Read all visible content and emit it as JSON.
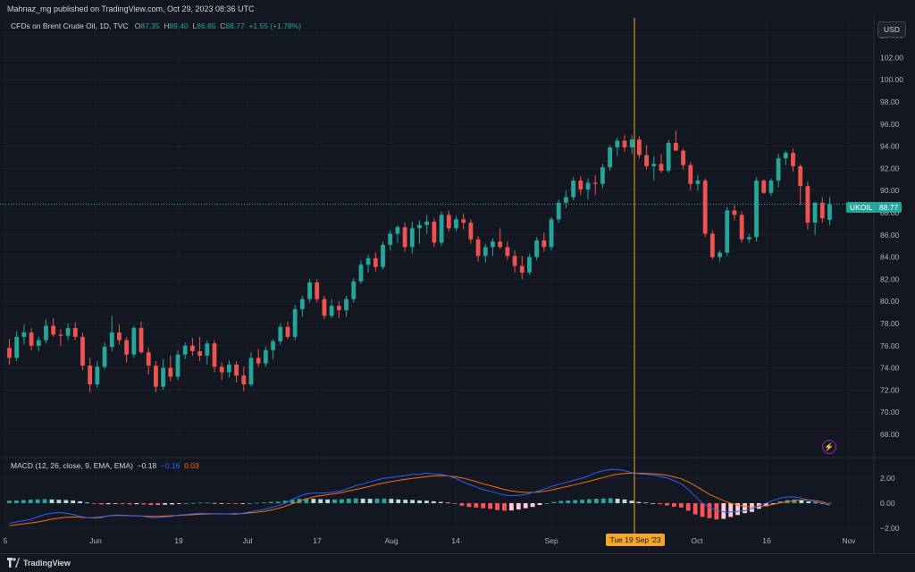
{
  "header": {
    "published": "Mahnaz_mg published on TradingView.com, Oct 29, 2023 08:36 UTC"
  },
  "legend": {
    "symbol": "CFDs on Brent Crude Oil, 1D, TVC",
    "o_label": "O",
    "o_value": "87.35",
    "h_label": "H",
    "h_value": "89.40",
    "l_label": "L",
    "l_value": "86.85",
    "c_label": "C",
    "c_value": "88.77",
    "change": "+1.55 (+1.78%)"
  },
  "currency_button": "USD",
  "price_label": {
    "symbol": "UKOIL",
    "value": "88.77"
  },
  "crosshair_date": "Tue 19 Sep '23",
  "macd_legend": {
    "name": "MACD (12, 26, close, 9, EMA, EMA)",
    "macd_value": "−0.18",
    "signal_value": "−0.16",
    "hist_value": "0.03"
  },
  "footer": {
    "brand": "TradingView"
  },
  "colors": {
    "up": "#26a69a",
    "down": "#ef5350",
    "macd_line": "#2962ff",
    "signal_line": "#ff6d00",
    "crosshair": "#f5a623",
    "bg": "#131722"
  },
  "chart_data": [
    {
      "type": "candlestick",
      "title": "CFDs on Brent Crude Oil, 1D, TVC",
      "y_ticks": [
        "104.00",
        "102.00",
        "100.00",
        "98.00",
        "96.00",
        "94.00",
        "92.00",
        "90.00",
        "88.00",
        "86.00",
        "84.00",
        "82.00",
        "80.00",
        "78.00",
        "76.00",
        "74.00",
        "72.00",
        "70.00",
        "68.00"
      ],
      "x_ticks": [
        "5",
        "Jun",
        "19",
        "Jul",
        "17",
        "Aug",
        "14",
        "Sep",
        "Oct",
        "16",
        "Nov"
      ],
      "ylim": [
        66.5,
        105
      ],
      "ohlc": [
        [
          75.8,
          76.6,
          74.3,
          74.9
        ],
        [
          74.9,
          77.3,
          74.6,
          76.8
        ],
        [
          76.8,
          77.9,
          76.1,
          77.2
        ],
        [
          77.2,
          77.6,
          75.6,
          76.0
        ],
        [
          76.0,
          76.8,
          75.5,
          76.5
        ],
        [
          76.5,
          78.4,
          76.2,
          77.8
        ],
        [
          77.8,
          78.5,
          76.8,
          77.0
        ],
        [
          77.0,
          77.5,
          76.0,
          76.9
        ],
        [
          76.9,
          78.0,
          76.5,
          77.6
        ],
        [
          77.6,
          78.1,
          76.5,
          76.8
        ],
        [
          76.8,
          77.2,
          73.8,
          74.2
        ],
        [
          74.2,
          74.9,
          71.8,
          72.5
        ],
        [
          72.5,
          74.6,
          72.2,
          74.1
        ],
        [
          74.1,
          76.3,
          73.9,
          75.9
        ],
        [
          75.9,
          78.7,
          75.5,
          77.2
        ],
        [
          77.2,
          77.9,
          76.1,
          76.5
        ],
        [
          76.5,
          76.8,
          74.5,
          75.2
        ],
        [
          75.2,
          77.8,
          74.9,
          77.6
        ],
        [
          77.6,
          78.2,
          75.3,
          75.4
        ],
        [
          75.4,
          75.8,
          73.4,
          74.2
        ],
        [
          74.2,
          74.6,
          71.8,
          72.3
        ],
        [
          72.3,
          74.8,
          72.0,
          74.0
        ],
        [
          74.0,
          75.1,
          72.8,
          73.2
        ],
        [
          73.2,
          75.6,
          72.9,
          75.2
        ],
        [
          75.2,
          76.3,
          74.8,
          76.0
        ],
        [
          76.0,
          76.7,
          75.1,
          75.5
        ],
        [
          75.5,
          76.8,
          74.6,
          75.1
        ],
        [
          75.1,
          76.5,
          74.3,
          76.2
        ],
        [
          76.2,
          76.5,
          73.6,
          74.1
        ],
        [
          74.1,
          74.5,
          72.9,
          73.6
        ],
        [
          73.6,
          74.7,
          73.1,
          74.3
        ],
        [
          74.3,
          74.6,
          72.7,
          73.3
        ],
        [
          73.3,
          74.1,
          71.9,
          72.5
        ],
        [
          72.5,
          75.4,
          72.3,
          74.9
        ],
        [
          74.9,
          75.7,
          74.1,
          74.4
        ],
        [
          74.4,
          75.9,
          74.1,
          75.6
        ],
        [
          75.6,
          76.6,
          74.8,
          76.4
        ],
        [
          76.4,
          78.0,
          76.1,
          77.7
        ],
        [
          77.7,
          78.2,
          76.6,
          76.8
        ],
        [
          76.8,
          79.7,
          76.5,
          79.3
        ],
        [
          79.3,
          80.5,
          78.6,
          80.2
        ],
        [
          80.2,
          82.0,
          79.9,
          81.7
        ],
        [
          81.7,
          82.0,
          79.9,
          80.2
        ],
        [
          80.2,
          80.5,
          78.4,
          78.7
        ],
        [
          78.7,
          80.2,
          78.5,
          79.6
        ],
        [
          79.6,
          80.0,
          78.5,
          79.2
        ],
        [
          79.2,
          80.5,
          78.6,
          80.2
        ],
        [
          80.2,
          82.1,
          79.9,
          81.8
        ],
        [
          81.8,
          83.7,
          81.6,
          83.3
        ],
        [
          83.3,
          84.2,
          82.6,
          83.9
        ],
        [
          83.9,
          84.4,
          82.7,
          83.1
        ],
        [
          83.1,
          85.4,
          82.9,
          85.1
        ],
        [
          85.1,
          86.4,
          84.6,
          86.1
        ],
        [
          86.1,
          86.9,
          85.3,
          86.7
        ],
        [
          86.7,
          87.1,
          84.5,
          84.9
        ],
        [
          84.9,
          87.2,
          84.3,
          86.6
        ],
        [
          86.6,
          87.3,
          85.2,
          86.9
        ],
        [
          86.9,
          87.8,
          86.1,
          87.2
        ],
        [
          87.2,
          87.5,
          84.9,
          85.3
        ],
        [
          85.3,
          88.1,
          85.0,
          87.8
        ],
        [
          87.8,
          88.2,
          86.3,
          86.6
        ],
        [
          86.6,
          87.7,
          86.3,
          87.4
        ],
        [
          87.4,
          87.9,
          86.5,
          87.1
        ],
        [
          87.1,
          87.4,
          85.2,
          85.6
        ],
        [
          85.6,
          85.9,
          83.6,
          84.1
        ],
        [
          84.1,
          85.2,
          83.5,
          84.9
        ],
        [
          84.9,
          85.7,
          84.1,
          85.4
        ],
        [
          85.4,
          86.6,
          84.7,
          84.9
        ],
        [
          84.9,
          85.4,
          83.7,
          84.1
        ],
        [
          84.1,
          84.6,
          82.6,
          83.2
        ],
        [
          83.2,
          84.1,
          82.0,
          82.6
        ],
        [
          82.6,
          84.3,
          82.4,
          84.0
        ],
        [
          84.0,
          85.8,
          83.7,
          85.5
        ],
        [
          85.5,
          86.2,
          84.5,
          84.9
        ],
        [
          84.9,
          87.6,
          84.6,
          87.4
        ],
        [
          87.4,
          89.2,
          87.1,
          88.9
        ],
        [
          88.9,
          90.0,
          88.4,
          89.4
        ],
        [
          89.4,
          91.2,
          89.1,
          90.9
        ],
        [
          90.9,
          91.3,
          89.6,
          90.1
        ],
        [
          90.1,
          91.1,
          89.2,
          90.7
        ],
        [
          90.7,
          91.4,
          89.6,
          90.6
        ],
        [
          90.6,
          92.4,
          90.2,
          92.1
        ],
        [
          92.1,
          94.1,
          91.8,
          93.9
        ],
        [
          93.9,
          94.8,
          93.1,
          94.5
        ],
        [
          94.5,
          95.0,
          93.5,
          93.9
        ],
        [
          93.9,
          95.0,
          93.3,
          94.6
        ],
        [
          94.6,
          94.9,
          92.9,
          93.2
        ],
        [
          93.2,
          94.1,
          91.9,
          92.2
        ],
        [
          92.2,
          93.1,
          90.9,
          92.4
        ],
        [
          92.4,
          93.3,
          91.6,
          91.8
        ],
        [
          91.8,
          94.6,
          91.6,
          94.3
        ],
        [
          94.3,
          95.4,
          93.6,
          93.6
        ],
        [
          93.6,
          93.8,
          91.9,
          92.3
        ],
        [
          92.3,
          92.6,
          90.0,
          90.6
        ],
        [
          90.6,
          91.4,
          90.0,
          90.9
        ],
        [
          90.9,
          91.1,
          85.8,
          86.1
        ],
        [
          86.1,
          86.4,
          83.8,
          84.0
        ],
        [
          84.0,
          84.6,
          83.6,
          84.4
        ],
        [
          84.4,
          88.5,
          84.1,
          88.2
        ],
        [
          88.2,
          88.7,
          87.3,
          87.8
        ],
        [
          87.8,
          88.1,
          85.3,
          85.6
        ],
        [
          85.6,
          86.1,
          85.3,
          85.8
        ],
        [
          85.8,
          91.2,
          85.4,
          90.9
        ],
        [
          90.9,
          91.0,
          89.7,
          89.8
        ],
        [
          89.8,
          91.1,
          89.5,
          90.9
        ],
        [
          90.9,
          93.3,
          90.3,
          92.9
        ],
        [
          92.9,
          93.6,
          92.3,
          93.4
        ],
        [
          93.4,
          93.8,
          91.7,
          92.2
        ],
        [
          92.2,
          92.4,
          88.7,
          90.4
        ],
        [
          90.4,
          90.8,
          86.5,
          87.1
        ],
        [
          87.1,
          89.0,
          86.0,
          88.9
        ],
        [
          88.9,
          89.4,
          87.1,
          87.5
        ],
        [
          87.35,
          89.4,
          86.85,
          88.77
        ]
      ]
    },
    {
      "type": "bar+line",
      "title": "MACD (12, 26, close, 9, EMA, EMA)",
      "y_ticks": [
        "2.00",
        "0.00",
        "−2.00"
      ],
      "ylim": [
        -3,
        3
      ],
      "series": [
        {
          "name": "Histogram",
          "values": [
            0.2,
            0.22,
            0.25,
            0.28,
            0.3,
            0.32,
            0.3,
            0.27,
            0.25,
            0.22,
            0.15,
            0.05,
            -0.05,
            -0.1,
            -0.08,
            -0.05,
            -0.08,
            -0.1,
            -0.08,
            -0.1,
            -0.15,
            -0.15,
            -0.12,
            -0.1,
            -0.05,
            0.0,
            0.02,
            0.05,
            0.05,
            0.02,
            0.0,
            -0.02,
            -0.06,
            -0.03,
            0.0,
            0.03,
            0.06,
            0.1,
            0.12,
            0.2,
            0.28,
            0.35,
            0.38,
            0.35,
            0.32,
            0.3,
            0.3,
            0.32,
            0.36,
            0.38,
            0.36,
            0.35,
            0.36,
            0.37,
            0.35,
            0.3,
            0.28,
            0.26,
            0.22,
            0.2,
            0.15,
            0.1,
            0.05,
            -0.05,
            -0.2,
            -0.3,
            -0.35,
            -0.4,
            -0.45,
            -0.55,
            -0.6,
            -0.58,
            -0.5,
            -0.4,
            -0.3,
            -0.15,
            0.0,
            0.1,
            0.18,
            0.22,
            0.25,
            0.28,
            0.32,
            0.36,
            0.38,
            0.4,
            0.36,
            0.3,
            0.2,
            0.1,
            0.05,
            0.0,
            -0.08,
            -0.18,
            -0.28,
            -0.35,
            -0.6,
            -0.9,
            -1.1,
            -1.2,
            -1.3,
            -1.25,
            -1.1,
            -0.95,
            -0.8,
            -0.7,
            -0.45,
            -0.25,
            -0.05,
            0.15,
            0.25,
            0.3,
            0.25,
            0.15,
            0.05,
            0.0,
            0.03
          ]
        },
        {
          "name": "MACD",
          "values": [
            -1.6,
            -1.5,
            -1.4,
            -1.3,
            -1.1,
            -0.9,
            -0.8,
            -0.75,
            -0.8,
            -0.9,
            -1.05,
            -1.15,
            -1.2,
            -1.15,
            -1.0,
            -0.95,
            -0.95,
            -0.98,
            -1.0,
            -1.05,
            -1.15,
            -1.15,
            -1.1,
            -1.05,
            -0.95,
            -0.9,
            -0.85,
            -0.8,
            -0.82,
            -0.85,
            -0.85,
            -0.86,
            -0.9,
            -0.8,
            -0.7,
            -0.6,
            -0.5,
            -0.35,
            -0.2,
            0.0,
            0.3,
            0.55,
            0.75,
            0.8,
            0.8,
            0.82,
            0.9,
            1.0,
            1.2,
            1.4,
            1.55,
            1.7,
            1.85,
            2.0,
            2.05,
            2.15,
            2.2,
            2.3,
            2.3,
            2.4,
            2.35,
            2.3,
            2.2,
            2.0,
            1.75,
            1.5,
            1.3,
            1.1,
            0.95,
            0.8,
            0.65,
            0.6,
            0.62,
            0.7,
            0.85,
            1.0,
            1.2,
            1.4,
            1.55,
            1.7,
            1.85,
            2.0,
            2.2,
            2.45,
            2.6,
            2.7,
            2.7,
            2.6,
            2.45,
            2.35,
            2.3,
            2.25,
            2.15,
            2.0,
            1.8,
            1.55,
            1.1,
            0.55,
            0.0,
            -0.35,
            -0.55,
            -0.7,
            -0.7,
            -0.65,
            -0.6,
            -0.45,
            -0.2,
            0.0,
            0.2,
            0.4,
            0.5,
            0.5,
            0.4,
            0.25,
            0.1,
            0.0,
            -0.18
          ]
        },
        {
          "name": "Signal",
          "values": [
            -1.8,
            -1.72,
            -1.65,
            -1.58,
            -1.5,
            -1.4,
            -1.28,
            -1.2,
            -1.12,
            -1.1,
            -1.12,
            -1.15,
            -1.16,
            -1.1,
            -1.02,
            -0.98,
            -0.98,
            -1.0,
            -1.02,
            -1.03,
            -1.05,
            -1.05,
            -1.03,
            -1.0,
            -0.98,
            -0.95,
            -0.92,
            -0.88,
            -0.86,
            -0.85,
            -0.85,
            -0.85,
            -0.85,
            -0.83,
            -0.78,
            -0.72,
            -0.65,
            -0.55,
            -0.42,
            -0.25,
            -0.05,
            0.15,
            0.35,
            0.5,
            0.6,
            0.68,
            0.75,
            0.85,
            0.98,
            1.1,
            1.22,
            1.35,
            1.5,
            1.62,
            1.72,
            1.82,
            1.9,
            1.98,
            2.05,
            2.12,
            2.18,
            2.2,
            2.18,
            2.12,
            2.02,
            1.88,
            1.72,
            1.55,
            1.4,
            1.25,
            1.1,
            0.98,
            0.9,
            0.86,
            0.86,
            0.9,
            0.98,
            1.1,
            1.22,
            1.35,
            1.48,
            1.62,
            1.75,
            1.9,
            2.05,
            2.2,
            2.32,
            2.38,
            2.4,
            2.4,
            2.38,
            2.35,
            2.3,
            2.22,
            2.1,
            1.95,
            1.7,
            1.4,
            1.05,
            0.7,
            0.45,
            0.2,
            0.0,
            -0.15,
            -0.25,
            -0.3,
            -0.28,
            -0.2,
            -0.1,
            0.02,
            0.12,
            0.2,
            0.25,
            0.25,
            0.2,
            0.12,
            -0.16
          ]
        }
      ]
    }
  ]
}
